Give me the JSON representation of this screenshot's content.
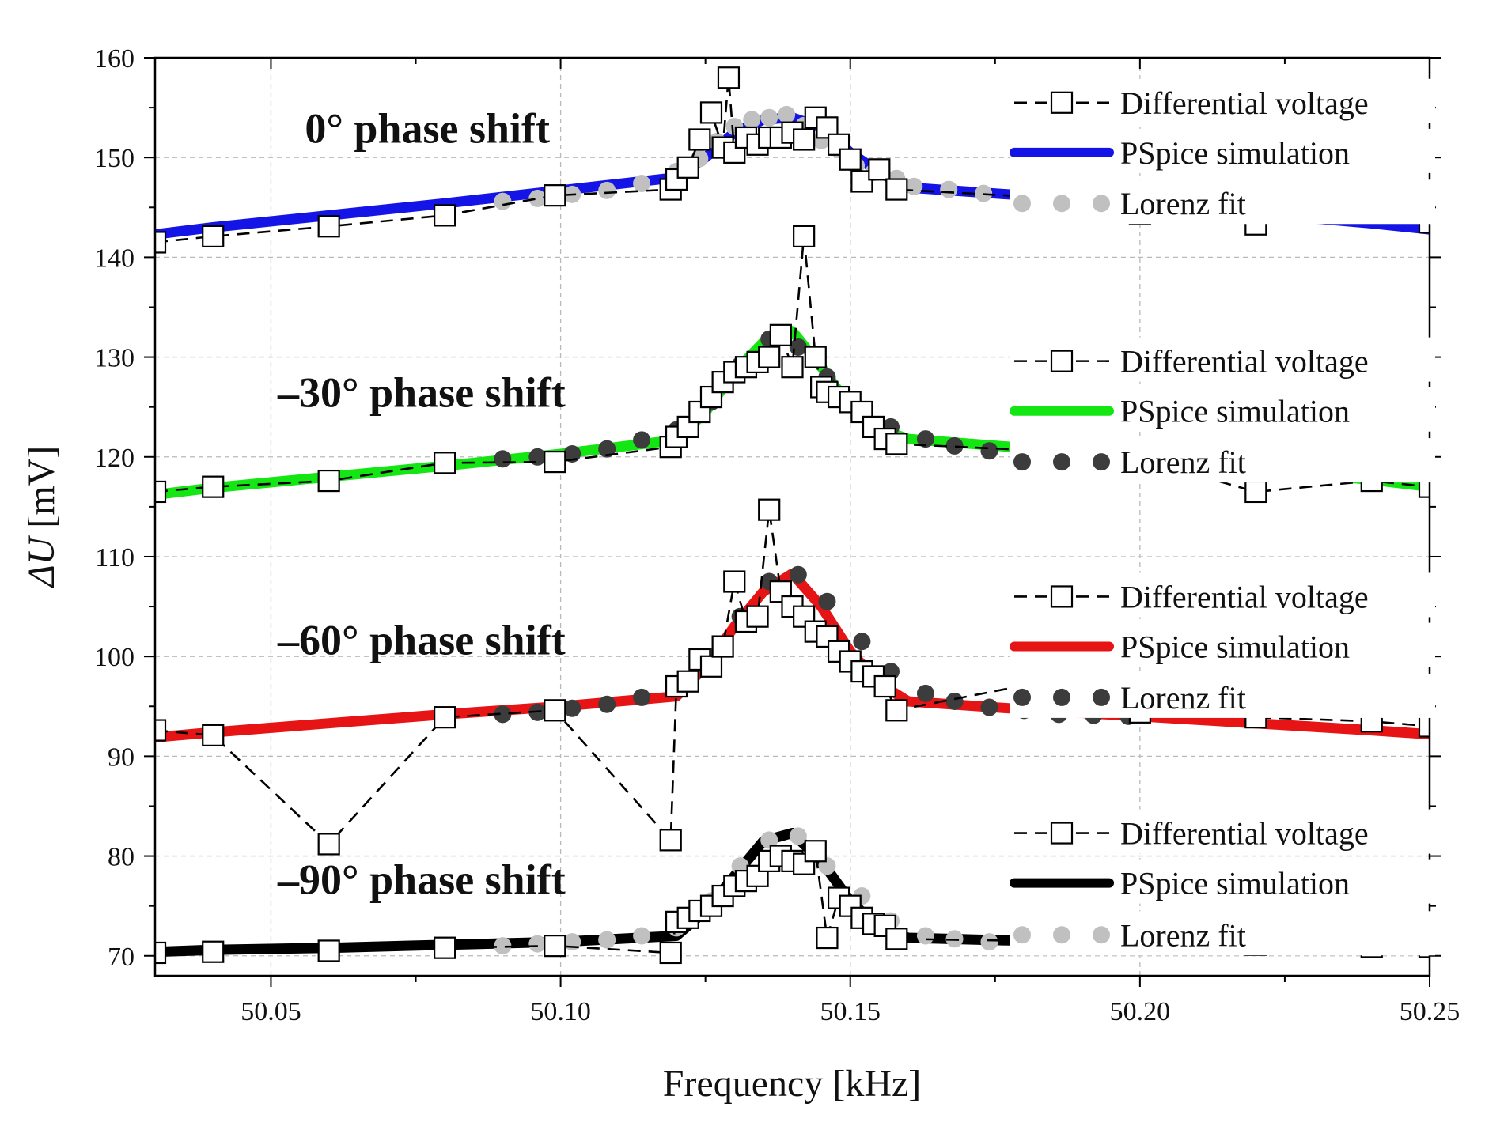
{
  "chart_data": {
    "type": "line",
    "title": "",
    "xlabel": "Frequency [kHz]",
    "ylabel_symbol": "ΔU",
    "ylabel_unit": "[mV]",
    "xlim": [
      50.03,
      50.25
    ],
    "ylim": [
      68,
      160
    ],
    "xticks": [
      50.05,
      50.1,
      50.15,
      50.2,
      50.25
    ],
    "xtick_labels": [
      "50.05",
      "50.10",
      "50.15",
      "50.20",
      "50.25"
    ],
    "yticks": [
      70,
      80,
      90,
      100,
      110,
      120,
      130,
      140,
      150,
      160
    ],
    "ytick_labels": [
      "70",
      "80",
      "90",
      "100",
      "110",
      "120",
      "130",
      "140",
      "150",
      "160"
    ],
    "grid": true,
    "annotations": [
      {
        "text": "0° phase shift",
        "x": 50.077,
        "y": 151.5
      },
      {
        "text": "–30° phase shift",
        "x": 50.076,
        "y": 125.0
      },
      {
        "text": "–60° phase shift",
        "x": 50.076,
        "y": 100.2
      },
      {
        "text": "–90° phase shift",
        "x": 50.076,
        "y": 76.2
      }
    ],
    "groups": [
      {
        "name": "0° phase shift",
        "sim_color": "#1414e6",
        "fit_color": "#c0c0c0",
        "legend": {
          "diff": "Differential voltage",
          "sim": "PSpice simulation",
          "fit": "Lorenz fit",
          "y": [
            155.5,
            150.5,
            145.4
          ]
        },
        "pspice": {
          "x": [
            50.03,
            50.04,
            50.06,
            50.08,
            50.1,
            50.12,
            50.125,
            50.13,
            50.135,
            50.14,
            50.145,
            50.15,
            50.155,
            50.16,
            50.18,
            50.2,
            50.22,
            50.24,
            50.25
          ],
          "y": [
            142.3,
            143.0,
            144.2,
            145.4,
            146.7,
            148.0,
            150.0,
            152.5,
            153.8,
            154.0,
            153.0,
            150.5,
            148.5,
            147.0,
            146.2,
            145.4,
            144.4,
            143.4,
            142.8
          ]
        },
        "lorenz": {
          "x": [
            50.09,
            50.096,
            50.102,
            50.108,
            50.114,
            50.12,
            50.124,
            50.127,
            50.13,
            50.133,
            50.136,
            50.139,
            50.142,
            50.145,
            50.148,
            50.151,
            50.154,
            50.158,
            50.161,
            50.167,
            50.173,
            50.179,
            50.186,
            50.192,
            50.198
          ],
          "y": [
            145.6,
            145.9,
            146.3,
            146.7,
            147.4,
            148.6,
            149.9,
            151.6,
            153.1,
            153.8,
            154.0,
            154.3,
            153.2,
            151.7,
            150.8,
            149.2,
            148.5,
            147.9,
            147.1,
            146.8,
            146.4,
            146.0,
            145.8,
            145.5,
            145.3
          ]
        },
        "differential": {
          "x": [
            50.03,
            50.04,
            50.06,
            50.08,
            50.099,
            50.119,
            50.12,
            50.122,
            50.124,
            50.126,
            50.128,
            50.129,
            50.13,
            50.132,
            50.134,
            50.136,
            50.138,
            50.14,
            50.142,
            50.144,
            50.146,
            50.148,
            50.15,
            50.152,
            50.155,
            50.158,
            50.18,
            50.2,
            50.22,
            50.24,
            50.25
          ],
          "y": [
            141.5,
            142.1,
            143.1,
            144.2,
            146.2,
            146.8,
            147.8,
            149.0,
            151.8,
            154.5,
            151.0,
            158.0,
            150.5,
            152.0,
            151.3,
            152.0,
            152.0,
            152.5,
            151.8,
            154.0,
            153.0,
            151.3,
            149.8,
            147.6,
            148.8,
            146.8,
            146.1,
            144.4,
            143.3,
            145.8,
            143.5
          ]
        }
      },
      {
        "name": "–30° phase shift",
        "sim_color": "#14e614",
        "fit_color": "#3c3c3c",
        "legend": {
          "diff": "Differential voltage",
          "sim": "PSpice simulation",
          "fit": "Lorenz fit",
          "y": [
            129.6,
            124.6,
            119.5
          ]
        },
        "pspice": {
          "x": [
            50.03,
            50.04,
            50.06,
            50.08,
            50.1,
            50.12,
            50.125,
            50.13,
            50.135,
            50.14,
            50.145,
            50.15,
            50.155,
            50.16,
            50.18,
            50.2,
            50.22,
            50.24,
            50.25
          ],
          "y": [
            116.2,
            116.9,
            118.0,
            119.1,
            120.3,
            121.7,
            124.5,
            128.5,
            131.5,
            132.6,
            129.0,
            125.0,
            122.8,
            121.8,
            120.9,
            120.0,
            118.8,
            117.7,
            117.0
          ]
        },
        "lorenz": {
          "x": [
            50.09,
            50.096,
            50.102,
            50.108,
            50.114,
            50.12,
            50.126,
            50.131,
            50.136,
            50.141,
            50.146,
            50.152,
            50.157,
            50.163,
            50.168,
            50.174,
            50.18,
            50.186,
            50.192,
            50.198
          ],
          "y": [
            119.8,
            120.0,
            120.3,
            120.8,
            121.7,
            122.7,
            125.5,
            129.2,
            131.8,
            131.0,
            128.0,
            124.5,
            123.0,
            121.8,
            121.1,
            120.6,
            120.2,
            119.9,
            119.6,
            119.8
          ]
        },
        "differential": {
          "x": [
            50.03,
            50.04,
            50.06,
            50.08,
            50.099,
            50.119,
            50.12,
            50.122,
            50.124,
            50.126,
            50.128,
            50.13,
            50.132,
            50.134,
            50.136,
            50.138,
            50.14,
            50.142,
            50.144,
            50.145,
            50.146,
            50.148,
            50.15,
            50.152,
            50.154,
            50.156,
            50.158,
            50.18,
            50.2,
            50.22,
            50.24,
            50.25
          ],
          "y": [
            116.5,
            117.0,
            117.6,
            119.4,
            119.5,
            121.0,
            122.0,
            123.0,
            124.5,
            126.0,
            127.5,
            128.5,
            129.0,
            129.5,
            130.0,
            132.2,
            129.0,
            142.1,
            130.0,
            127.0,
            126.5,
            126.0,
            125.5,
            124.5,
            123.0,
            121.8,
            121.3,
            120.7,
            119.8,
            116.5,
            117.6,
            117.0
          ]
        }
      },
      {
        "name": "–60° phase shift",
        "sim_color": "#e61414",
        "fit_color": "#3c3c3c",
        "legend": {
          "diff": "Differential voltage",
          "sim": "PSpice simulation",
          "fit": "Lorenz fit",
          "y": [
            106.0,
            101.0,
            95.9
          ]
        },
        "pspice": {
          "x": [
            50.03,
            50.04,
            50.06,
            50.08,
            50.1,
            50.12,
            50.125,
            50.13,
            50.135,
            50.14,
            50.145,
            50.15,
            50.155,
            50.16,
            50.18,
            50.2,
            50.22,
            50.24,
            50.25
          ],
          "y": [
            91.9,
            92.4,
            93.3,
            94.2,
            95.0,
            96.0,
            99.0,
            103.0,
            106.5,
            108.3,
            105.0,
            100.5,
            97.3,
            95.5,
            94.7,
            94.0,
            93.3,
            92.6,
            92.2
          ]
        },
        "lorenz": {
          "x": [
            50.09,
            50.096,
            50.102,
            50.108,
            50.114,
            50.12,
            50.126,
            50.131,
            50.136,
            50.141,
            50.146,
            50.152,
            50.157,
            50.163,
            50.168,
            50.174,
            50.18,
            50.186,
            50.192,
            50.198
          ],
          "y": [
            94.2,
            94.4,
            94.8,
            95.2,
            95.9,
            97.0,
            100.0,
            104.0,
            107.5,
            108.2,
            105.5,
            101.5,
            98.5,
            96.3,
            95.5,
            94.9,
            94.6,
            94.2,
            94.1,
            94.0
          ]
        },
        "differential": {
          "x": [
            50.03,
            50.04,
            50.06,
            50.08,
            50.099,
            50.119,
            50.12,
            50.122,
            50.124,
            50.126,
            50.128,
            50.13,
            50.132,
            50.134,
            50.136,
            50.138,
            50.14,
            50.142,
            50.144,
            50.146,
            50.148,
            50.15,
            50.152,
            50.154,
            50.156,
            50.158,
            50.18,
            50.2,
            50.22,
            50.24,
            50.25
          ],
          "y": [
            92.6,
            92.1,
            81.2,
            93.9,
            94.6,
            81.6,
            97.0,
            97.5,
            99.7,
            99.0,
            101.0,
            107.5,
            103.5,
            104.0,
            114.7,
            106.5,
            105.0,
            104.0,
            102.5,
            102.0,
            100.5,
            99.5,
            98.5,
            98.0,
            97.0,
            94.6,
            97.1,
            94.4,
            93.9,
            93.5,
            93.0
          ]
        }
      },
      {
        "name": "–90° phase shift",
        "sim_color": "#000000",
        "fit_color": "#c0c0c0",
        "legend": {
          "diff": "Differential voltage",
          "sim": "PSpice simulation",
          "fit": "Lorenz fit",
          "y": [
            82.3,
            77.3,
            72.1
          ]
        },
        "pspice": {
          "x": [
            50.03,
            50.04,
            50.06,
            50.08,
            50.1,
            50.12,
            50.125,
            50.13,
            50.135,
            50.14,
            50.145,
            50.15,
            50.155,
            50.16,
            50.18,
            50.2,
            50.22,
            50.24,
            50.25
          ],
          "y": [
            70.4,
            70.6,
            70.8,
            71.1,
            71.4,
            72.0,
            74.5,
            78.0,
            81.5,
            82.3,
            79.5,
            75.5,
            72.8,
            71.8,
            71.5,
            71.2,
            71.0,
            70.8,
            70.6
          ]
        },
        "lorenz": {
          "x": [
            50.09,
            50.096,
            50.102,
            50.108,
            50.114,
            50.12,
            50.126,
            50.131,
            50.136,
            50.141,
            50.146,
            50.152,
            50.157,
            50.163,
            50.168,
            50.174,
            50.18,
            50.186,
            50.192,
            50.198
          ],
          "y": [
            71.0,
            71.2,
            71.4,
            71.6,
            72.0,
            72.8,
            75.5,
            79.0,
            81.6,
            82.0,
            79.0,
            76.0,
            73.5,
            72.0,
            71.7,
            71.4,
            71.3,
            71.1,
            71.0,
            71.0
          ]
        },
        "differential": {
          "x": [
            50.03,
            50.04,
            50.06,
            50.08,
            50.099,
            50.119,
            50.12,
            50.122,
            50.124,
            50.126,
            50.128,
            50.13,
            50.132,
            50.134,
            50.136,
            50.138,
            50.14,
            50.142,
            50.144,
            50.146,
            50.148,
            50.15,
            50.152,
            50.154,
            50.156,
            50.158,
            50.18,
            50.2,
            50.22,
            50.24,
            50.25
          ],
          "y": [
            70.3,
            70.4,
            70.5,
            70.8,
            71.0,
            70.3,
            73.4,
            73.8,
            74.5,
            75.0,
            76.0,
            77.0,
            77.5,
            78.0,
            79.5,
            80.0,
            79.5,
            79.2,
            80.5,
            71.8,
            75.8,
            75.0,
            73.8,
            73.2,
            73.0,
            71.7,
            71.5,
            73.2,
            71.1,
            70.9,
            70.9
          ]
        }
      }
    ]
  }
}
